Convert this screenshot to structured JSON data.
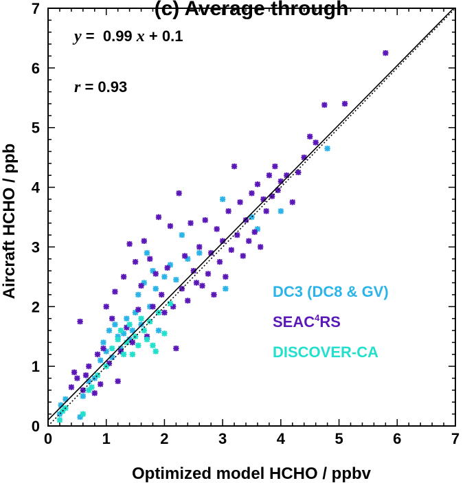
{
  "chart_data": {
    "type": "scatter",
    "title": "(c) Average through",
    "xlabel": "Optimized model HCHO / ppbv",
    "ylabel": "Aircraft HCHO / ppb",
    "xlim": [
      0,
      7
    ],
    "ylim": [
      0,
      7
    ],
    "xticks": [
      "0",
      "1",
      "2",
      "3",
      "4",
      "5",
      "6",
      "7"
    ],
    "yticks": [
      "0",
      "1",
      "2",
      "3",
      "4",
      "5",
      "6",
      "7"
    ],
    "annotations": {
      "regression": {
        "y_var": "y",
        "eq": " =  0.99 ",
        "x_var": "x",
        "rest": " + 0.1"
      },
      "correlation": {
        "r_var": "r",
        "rest": " = 0.93"
      }
    },
    "fit_line": {
      "slope": 0.99,
      "intercept": 0.1
    },
    "identity_line": true,
    "legend_position": "lower-right",
    "series": [
      {
        "name": "DC3 (DC8 & GV)",
        "color": "#2cb4e8",
        "points": [
          [
            0.2,
            0.2
          ],
          [
            0.22,
            0.35
          ],
          [
            0.3,
            0.45
          ],
          [
            0.55,
            0.15
          ],
          [
            0.6,
            0.5
          ],
          [
            0.7,
            0.75
          ],
          [
            0.8,
            0.8
          ],
          [
            0.9,
            1.1
          ],
          [
            0.95,
            1.4
          ],
          [
            1.0,
            1.25
          ],
          [
            1.05,
            1.6
          ],
          [
            1.1,
            1.15
          ],
          [
            1.15,
            1.7
          ],
          [
            1.2,
            1.5
          ],
          [
            1.25,
            1.3
          ],
          [
            1.3,
            1.55
          ],
          [
            1.35,
            1.8
          ],
          [
            1.4,
            1.45
          ],
          [
            1.45,
            1.6
          ],
          [
            1.5,
            1.9
          ],
          [
            1.55,
            2.2
          ],
          [
            1.6,
            1.7
          ],
          [
            1.65,
            2.4
          ],
          [
            1.7,
            2.9
          ],
          [
            1.75,
            2.0
          ],
          [
            1.8,
            2.6
          ],
          [
            1.85,
            2.3
          ],
          [
            1.9,
            1.6
          ],
          [
            2.0,
            2.5
          ],
          [
            2.1,
            2.7
          ],
          [
            2.2,
            2.45
          ],
          [
            2.3,
            3.2
          ],
          [
            2.4,
            2.8
          ],
          [
            2.6,
            2.9
          ],
          [
            3.0,
            3.8
          ],
          [
            3.05,
            2.3
          ],
          [
            3.5,
            3.5
          ],
          [
            3.6,
            3.3
          ],
          [
            4.0,
            3.6
          ],
          [
            4.8,
            4.65
          ]
        ]
      },
      {
        "name": "SEAC4RS",
        "color": "#5b18b8",
        "points": [
          [
            0.4,
            0.65
          ],
          [
            0.45,
            0.9
          ],
          [
            0.5,
            0.8
          ],
          [
            0.55,
            1.75
          ],
          [
            0.6,
            0.6
          ],
          [
            0.65,
            0.85
          ],
          [
            0.7,
            1.0
          ],
          [
            0.8,
            0.55
          ],
          [
            0.85,
            1.2
          ],
          [
            0.9,
            0.7
          ],
          [
            0.95,
            1.3
          ],
          [
            1.0,
            2.0
          ],
          [
            1.05,
            1.05
          ],
          [
            1.1,
            1.8
          ],
          [
            1.15,
            2.25
          ],
          [
            1.2,
            0.75
          ],
          [
            1.25,
            1.25
          ],
          [
            1.3,
            2.5
          ],
          [
            1.35,
            1.65
          ],
          [
            1.4,
            3.05
          ],
          [
            1.45,
            1.4
          ],
          [
            1.5,
            2.75
          ],
          [
            1.55,
            1.95
          ],
          [
            1.6,
            2.35
          ],
          [
            1.65,
            3.1
          ],
          [
            1.7,
            1.5
          ],
          [
            1.75,
            2.8
          ],
          [
            1.8,
            2.0
          ],
          [
            1.85,
            2.55
          ],
          [
            1.9,
            3.5
          ],
          [
            1.95,
            2.2
          ],
          [
            2.0,
            1.9
          ],
          [
            2.05,
            2.65
          ],
          [
            2.1,
            3.35
          ],
          [
            2.15,
            2.0
          ],
          [
            2.2,
            1.3
          ],
          [
            2.25,
            3.9
          ],
          [
            2.3,
            2.3
          ],
          [
            2.35,
            2.85
          ],
          [
            2.4,
            2.1
          ],
          [
            2.45,
            3.4
          ],
          [
            2.5,
            2.6
          ],
          [
            2.55,
            2.4
          ],
          [
            2.6,
            3.0
          ],
          [
            2.65,
            2.35
          ],
          [
            2.7,
            3.45
          ],
          [
            2.75,
            2.55
          ],
          [
            2.8,
            2.9
          ],
          [
            2.85,
            2.2
          ],
          [
            2.9,
            3.3
          ],
          [
            2.95,
            2.75
          ],
          [
            3.0,
            3.1
          ],
          [
            3.05,
            2.5
          ],
          [
            3.1,
            3.6
          ],
          [
            3.15,
            2.95
          ],
          [
            3.2,
            4.35
          ],
          [
            3.25,
            3.2
          ],
          [
            3.3,
            3.75
          ],
          [
            3.35,
            2.85
          ],
          [
            3.4,
            3.45
          ],
          [
            3.45,
            3.1
          ],
          [
            3.5,
            3.9
          ],
          [
            3.55,
            3.25
          ],
          [
            3.6,
            4.05
          ],
          [
            3.65,
            3.0
          ],
          [
            3.7,
            3.8
          ],
          [
            3.75,
            3.6
          ],
          [
            3.8,
            4.2
          ],
          [
            3.85,
            3.85
          ],
          [
            3.9,
            4.35
          ],
          [
            3.95,
            3.95
          ],
          [
            4.0,
            4.1
          ],
          [
            4.1,
            4.2
          ],
          [
            4.2,
            3.75
          ],
          [
            4.3,
            4.25
          ],
          [
            4.4,
            4.5
          ],
          [
            4.5,
            4.85
          ],
          [
            4.6,
            4.75
          ],
          [
            4.75,
            5.38
          ],
          [
            5.1,
            5.4
          ],
          [
            5.8,
            6.25
          ]
        ]
      },
      {
        "name": "DISCOVER-CA",
        "color": "#22e0cc",
        "points": [
          [
            0.2,
            0.1
          ],
          [
            0.25,
            0.25
          ],
          [
            0.3,
            0.3
          ],
          [
            0.6,
            0.2
          ],
          [
            0.7,
            0.6
          ],
          [
            0.75,
            0.65
          ],
          [
            0.85,
            0.85
          ],
          [
            1.0,
            1.0
          ],
          [
            1.1,
            1.3
          ],
          [
            1.2,
            1.45
          ],
          [
            1.25,
            1.6
          ],
          [
            1.3,
            1.2
          ],
          [
            1.35,
            1.4
          ],
          [
            1.4,
            1.7
          ],
          [
            1.45,
            1.2
          ],
          [
            1.5,
            1.5
          ],
          [
            1.55,
            1.35
          ],
          [
            1.6,
            1.8
          ],
          [
            1.65,
            1.6
          ],
          [
            1.7,
            1.45
          ],
          [
            1.75,
            1.75
          ],
          [
            1.8,
            1.35
          ],
          [
            1.85,
            1.25
          ],
          [
            1.9,
            1.9
          ],
          [
            2.0,
            1.55
          ],
          [
            2.1,
            2.05
          ]
        ]
      }
    ]
  }
}
